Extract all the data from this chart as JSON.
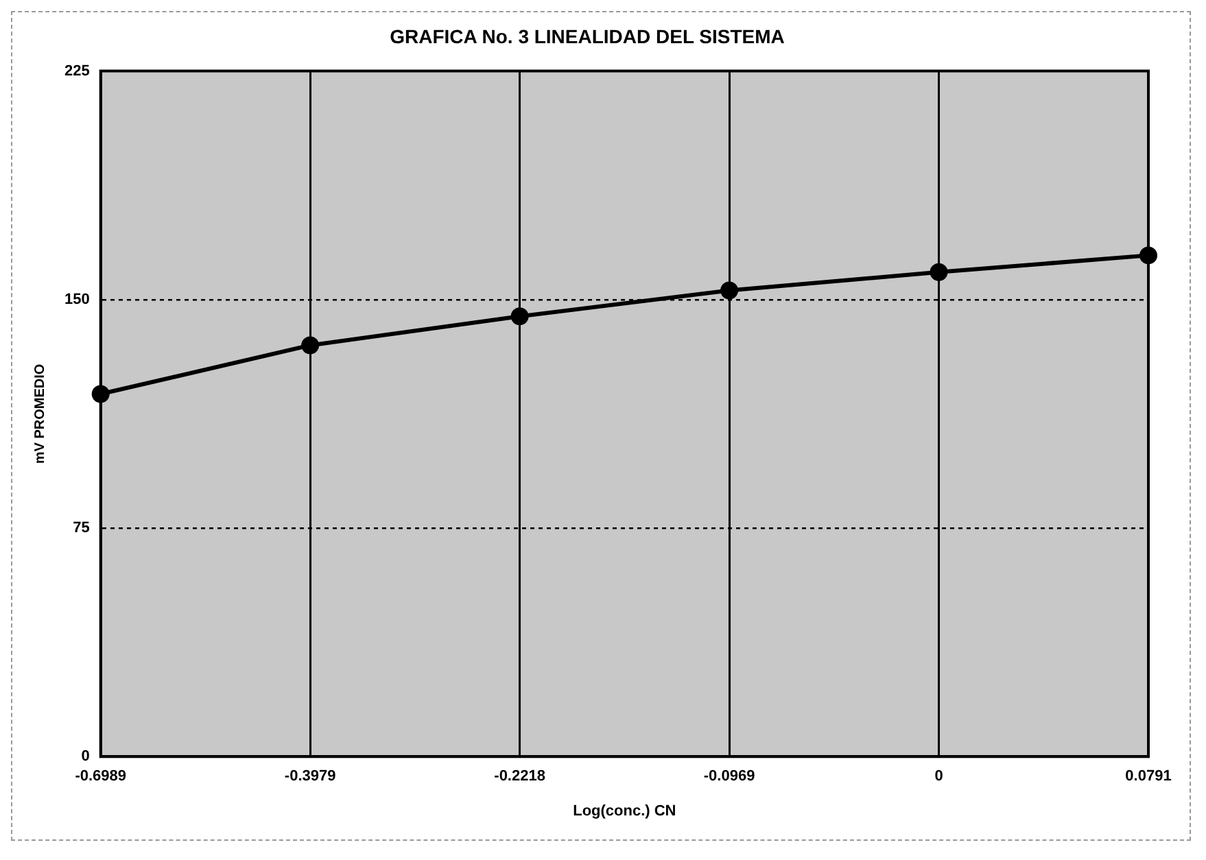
{
  "chart_data": {
    "type": "line",
    "title": "GRAFICA No. 3 LINEALIDAD DEL SISTEMA",
    "xlabel": "Log(conc.) CN",
    "ylabel": "mV PROMEDIO",
    "categories": [
      "-0.6989",
      "-0.3979",
      "-0.2218",
      "-0.0969",
      "0",
      "0.0791"
    ],
    "series": [
      {
        "color": "#000000",
        "values": [
          119,
          135,
          144.5,
          153,
          159,
          164.5
        ]
      }
    ],
    "ylim": [
      0,
      225
    ],
    "yticks": [
      0,
      75,
      150,
      225
    ],
    "grid": true,
    "legend": false,
    "marker": "circle",
    "line_style": "solid"
  }
}
